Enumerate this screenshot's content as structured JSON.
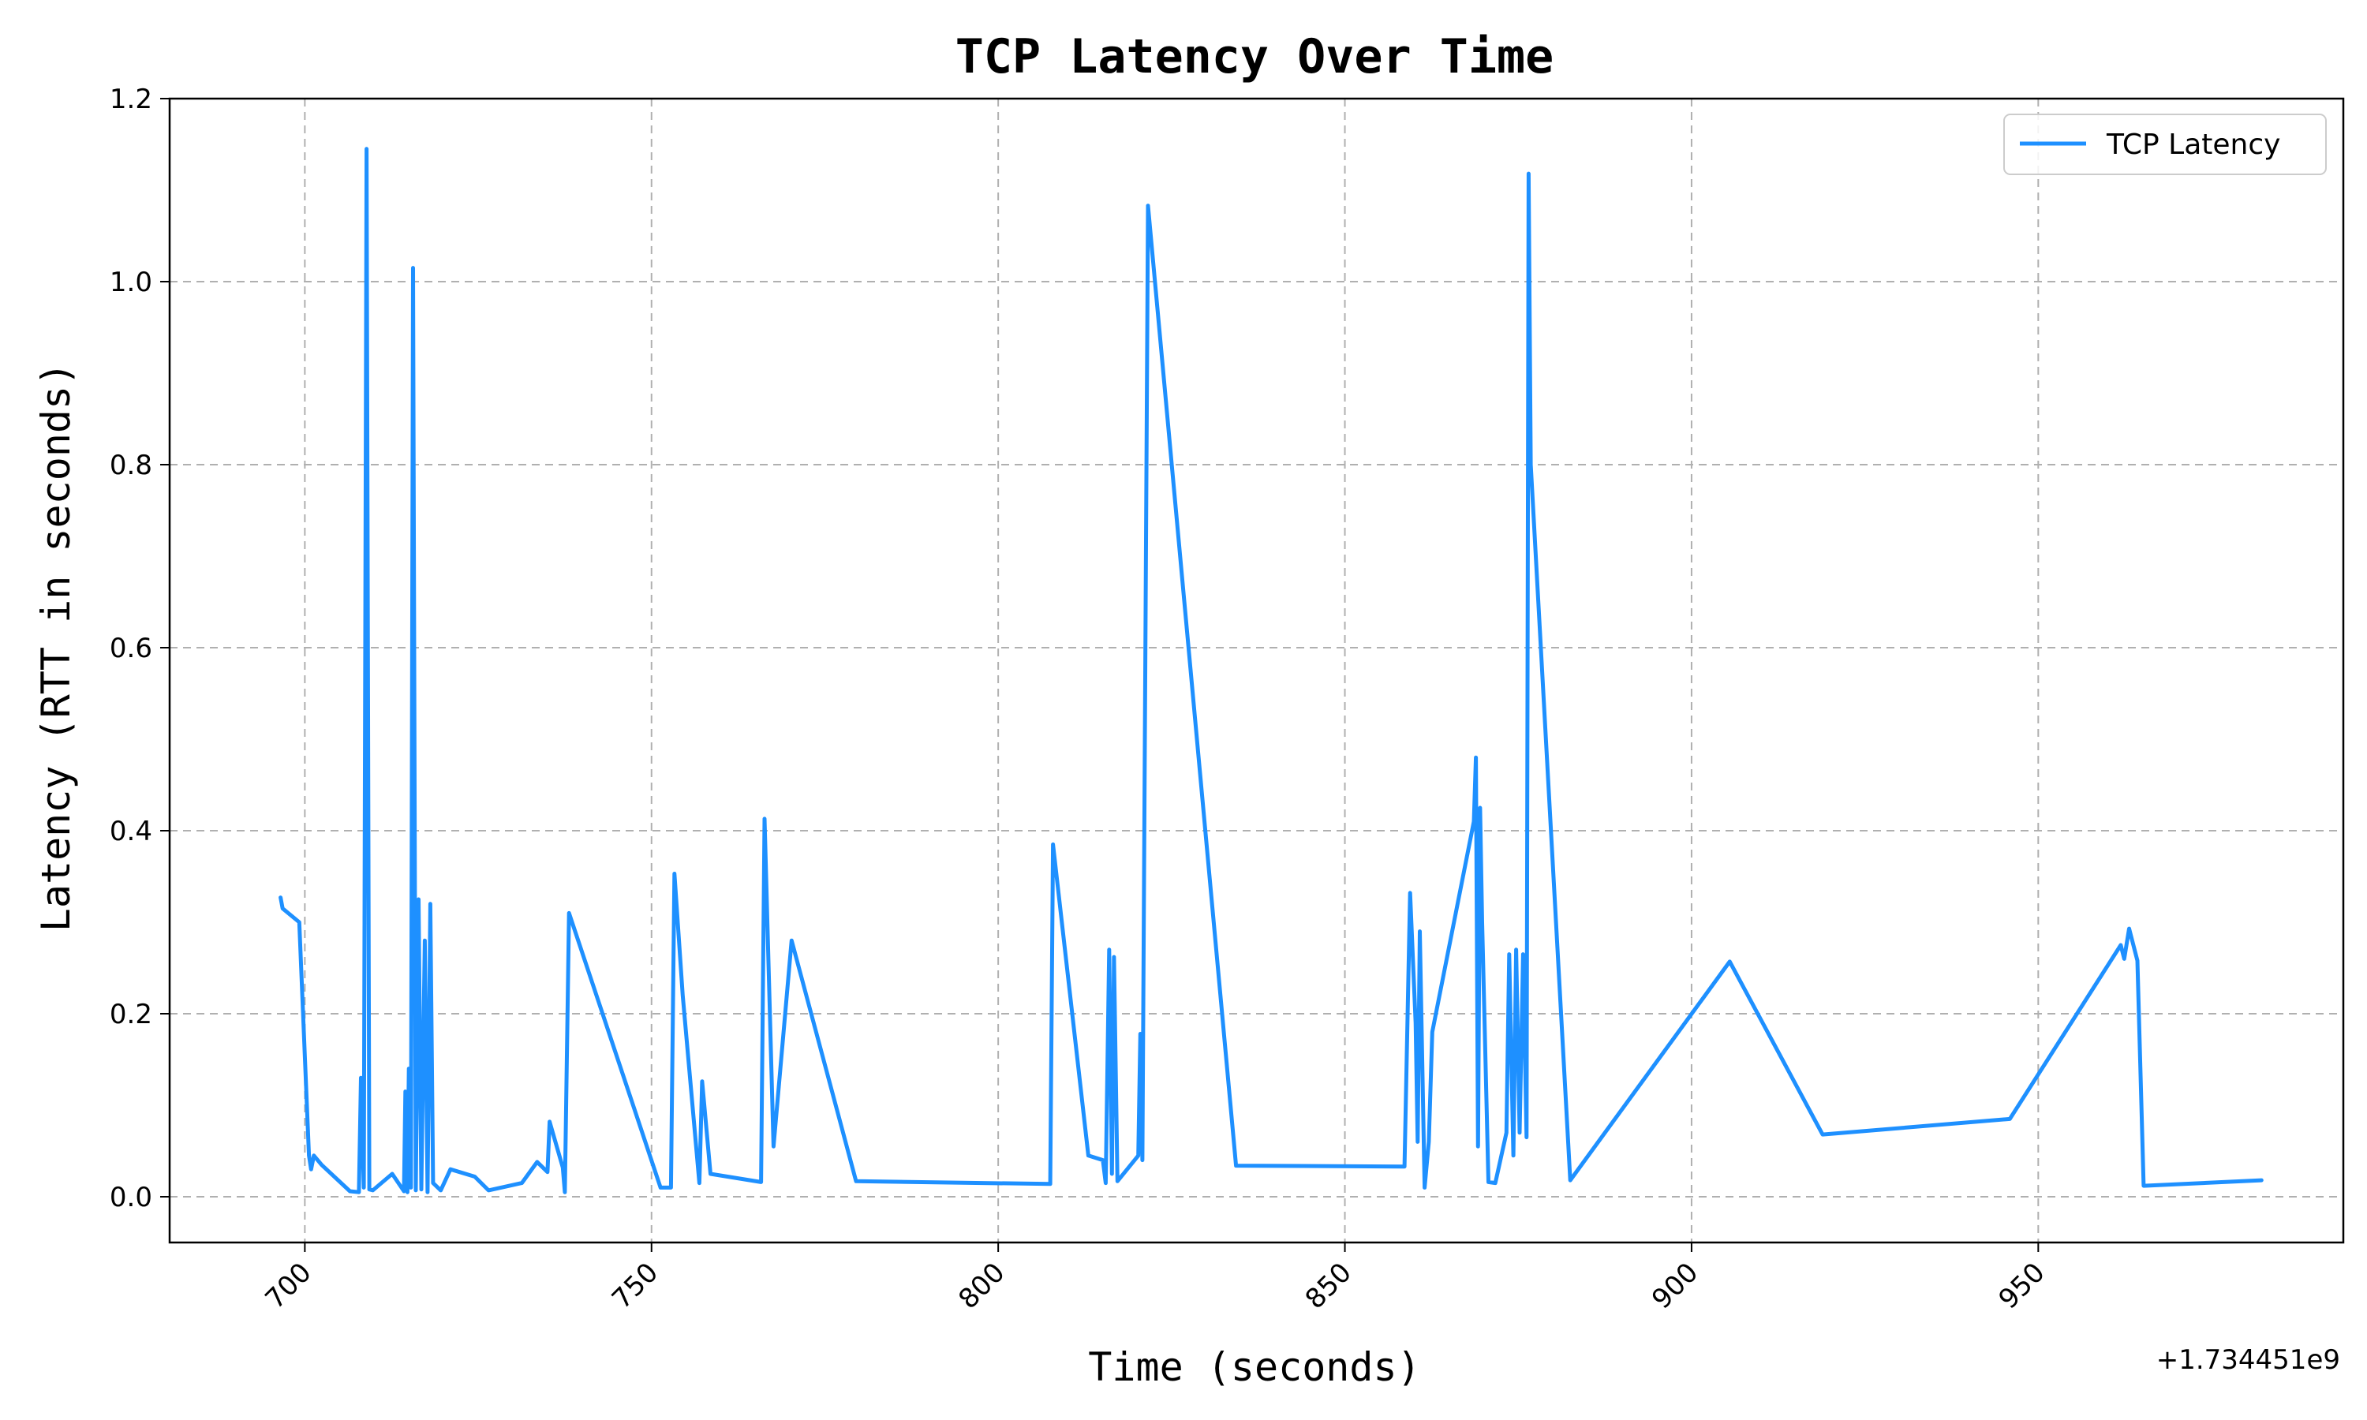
{
  "chart_data": {
    "type": "line",
    "title": "TCP Latency Over Time",
    "xlabel": "Time (seconds)",
    "ylabel": "Latency (RTT in seconds)",
    "x_offset_label": "+1.734451e9",
    "xlim": [
      680.5,
      994
    ],
    "ylim": [
      -0.05,
      1.2
    ],
    "xticks": [
      700,
      750,
      800,
      850,
      900,
      950
    ],
    "xtick_labels": [
      "700",
      "750",
      "800",
      "850",
      "900",
      "950"
    ],
    "yticks": [
      0.0,
      0.2,
      0.4,
      0.6,
      0.8,
      1.0,
      1.2
    ],
    "ytick_labels": [
      "0.0",
      "0.2",
      "0.4",
      "0.6",
      "0.8",
      "1.0",
      "1.2"
    ],
    "grid": true,
    "legend_position": "top-right",
    "series": [
      {
        "name": "TCP Latency",
        "color": "#1e90ff",
        "x": [
          696.5,
          696.8,
          699.2,
          700.6,
          700.9,
          701.3,
          702.4,
          706.5,
          707.8,
          708.1,
          708.5,
          708.9,
          709.3,
          709.8,
          712.6,
          714.3,
          714.5,
          714.8,
          715.0,
          715.3,
          715.6,
          716.0,
          716.4,
          716.8,
          717.3,
          717.7,
          718.1,
          718.5,
          719.6,
          721.0,
          724.5,
          726.5,
          731.3,
          733.5,
          735.0,
          735.3,
          737.2,
          737.5,
          738.1,
          751.3,
          752.8,
          753.3,
          754.5,
          756.9,
          757.3,
          758.5,
          765.8,
          766.3,
          767.6,
          770.2,
          779.5,
          807.5,
          807.9,
          813.0,
          815.1,
          815.5,
          816.0,
          816.4,
          816.7,
          817.2,
          820.2,
          820.5,
          820.8,
          821.6,
          834.3,
          858.6,
          859.4,
          860.2,
          860.5,
          860.8,
          861.5,
          862.1,
          862.6,
          868.6,
          868.9,
          869.2,
          869.5,
          869.8,
          870.7,
          871.7,
          873.3,
          873.7,
          874.3,
          874.7,
          875.2,
          875.7,
          876.2,
          876.5,
          876.8,
          882.5,
          905.5,
          918.9,
          945.9,
          961.9,
          962.4,
          963.1,
          964.3,
          965.2,
          982.2
        ],
        "y": [
          0.327,
          0.315,
          0.3,
          0.045,
          0.03,
          0.045,
          0.035,
          0.006,
          0.005,
          0.13,
          0.01,
          1.145,
          0.008,
          0.007,
          0.025,
          0.006,
          0.115,
          0.005,
          0.14,
          0.01,
          1.015,
          0.007,
          0.325,
          0.008,
          0.28,
          0.005,
          0.32,
          0.015,
          0.007,
          0.03,
          0.022,
          0.007,
          0.015,
          0.038,
          0.027,
          0.082,
          0.032,
          0.005,
          0.31,
          0.01,
          0.01,
          0.353,
          0.22,
          0.015,
          0.126,
          0.025,
          0.016,
          0.413,
          0.055,
          0.28,
          0.017,
          0.014,
          0.385,
          0.045,
          0.04,
          0.015,
          0.27,
          0.025,
          0.262,
          0.017,
          0.045,
          0.178,
          0.04,
          1.083,
          0.034,
          0.033,
          0.332,
          0.19,
          0.06,
          0.29,
          0.01,
          0.06,
          0.18,
          0.41,
          0.48,
          0.055,
          0.425,
          0.3,
          0.016,
          0.015,
          0.07,
          0.265,
          0.045,
          0.27,
          0.07,
          0.265,
          0.065,
          1.118,
          0.8,
          0.018,
          0.257,
          0.068,
          0.085,
          0.275,
          0.26,
          0.293,
          0.258,
          0.012,
          0.018
        ]
      }
    ]
  }
}
